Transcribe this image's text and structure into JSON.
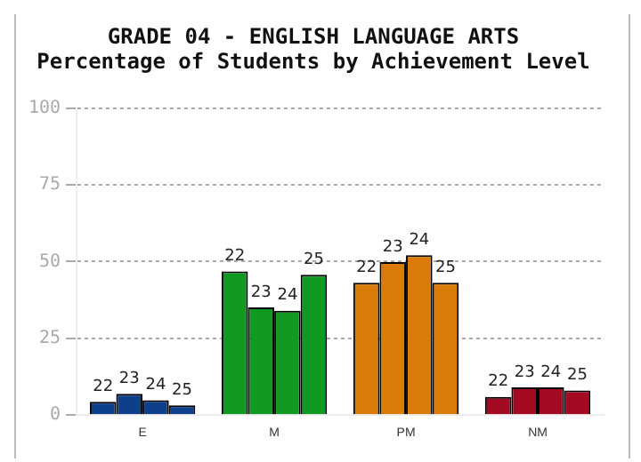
{
  "chart_data": {
    "type": "bar",
    "title": "GRADE 04 - ENGLISH LANGUAGE ARTS",
    "subtitle": "Percentage of Students by Achievement Level",
    "categories": [
      "E",
      "M",
      "PM",
      "NM"
    ],
    "series": [
      {
        "name": "22",
        "colors": [
          "#0d3f8a",
          "#109a22",
          "#d97b06",
          "#a30a22"
        ],
        "values": [
          4.3,
          46.8,
          43.1,
          5.9
        ]
      },
      {
        "name": "23",
        "colors": [
          "#0d3f8a",
          "#109a22",
          "#d97b06",
          "#a30a22"
        ],
        "values": [
          6.9,
          35.1,
          49.8,
          9
        ]
      },
      {
        "name": "24",
        "colors": [
          "#0d3f8a",
          "#109a22",
          "#d97b06",
          "#a30a22"
        ],
        "values": [
          4.8,
          34,
          52.1,
          9
        ]
      },
      {
        "name": "25",
        "colors": [
          "#0d3f8a",
          "#109a22",
          "#d97b06",
          "#a30a22"
        ],
        "values": [
          3.2,
          45.7,
          43.1,
          8
        ]
      }
    ],
    "ylim": [
      0,
      100
    ],
    "yticks": [
      0,
      25,
      50,
      75,
      100
    ],
    "grid": "y",
    "legend": false
  }
}
